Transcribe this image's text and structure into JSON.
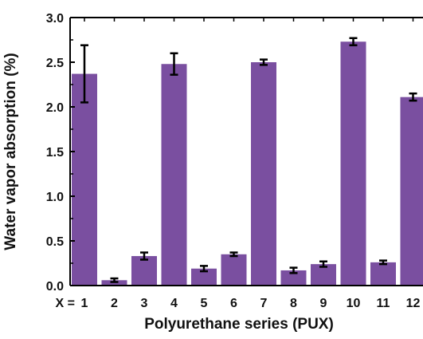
{
  "chart_data": {
    "type": "bar",
    "categories": [
      "1",
      "2",
      "3",
      "4",
      "5",
      "6",
      "7",
      "8",
      "9",
      "10",
      "11",
      "12"
    ],
    "category_prefix": "X = ",
    "values": [
      2.37,
      0.06,
      0.33,
      2.48,
      0.19,
      0.35,
      2.5,
      0.17,
      0.24,
      2.73,
      0.26,
      2.11
    ],
    "errors": [
      0.32,
      0.02,
      0.04,
      0.12,
      0.03,
      0.02,
      0.03,
      0.03,
      0.03,
      0.04,
      0.02,
      0.04
    ],
    "xlabel": "Polyurethane series (PUX)",
    "ylabel": "Water vapor absorption (%)",
    "ylim": [
      0,
      3.0
    ],
    "yticks": [
      "0.0",
      "0.5",
      "1.0",
      "1.5",
      "2.0",
      "2.5",
      "3.0"
    ],
    "bar_color": "#7a4fa0",
    "grid": false
  }
}
